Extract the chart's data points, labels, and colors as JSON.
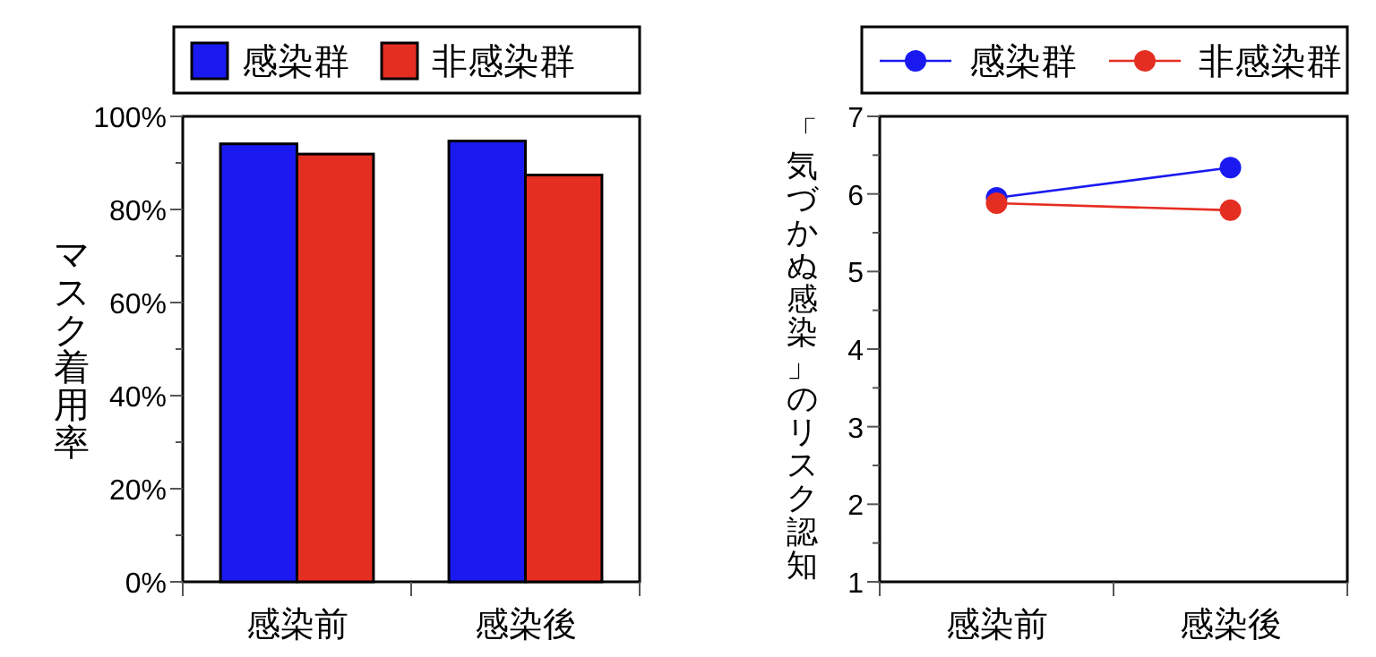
{
  "chart_data": [
    {
      "type": "bar",
      "categories": [
        "感染前",
        "感染後"
      ],
      "ylabel": "マスク着用率",
      "legend": "top",
      "ylim": [
        0,
        100
      ],
      "yticks": [
        {
          "value": 0,
          "label": "0%"
        },
        {
          "value": 10,
          "label": null
        },
        {
          "value": 20,
          "label": "20%"
        },
        {
          "value": 30,
          "label": null
        },
        {
          "value": 40,
          "label": "40%"
        },
        {
          "value": 50,
          "label": null
        },
        {
          "value": 60,
          "label": "60%"
        },
        {
          "value": 70,
          "label": null
        },
        {
          "value": 80,
          "label": "80%"
        },
        {
          "value": 90,
          "label": null
        },
        {
          "value": 100,
          "label": "100%"
        }
      ],
      "series": [
        {
          "name": "感染群",
          "color": "#1a1af0",
          "values": [
            94.1,
            94.7
          ]
        },
        {
          "name": "非感染群",
          "color": "#e52e22",
          "values": [
            91.9,
            87.4
          ]
        }
      ]
    },
    {
      "type": "line",
      "categories": [
        "感染前",
        "感染後"
      ],
      "ylabel": "「気づかぬ感染」のリスク認知",
      "legend": "top",
      "marker": "circle",
      "line_style": "solid",
      "ylim": [
        1,
        7
      ],
      "yticks": [
        1,
        {
          "value": 1.5,
          "label": null
        },
        2,
        {
          "value": 2.5,
          "label": null
        },
        3,
        {
          "value": 3.5,
          "label": null
        },
        4,
        {
          "value": 4.5,
          "label": null
        },
        5,
        {
          "value": 5.5,
          "label": null
        },
        6,
        {
          "value": 6.5,
          "label": null
        },
        7
      ],
      "series": [
        {
          "name": "感染群",
          "color": "#1a1af0",
          "values": [
            5.95,
            6.34
          ]
        },
        {
          "name": "非感染群",
          "color": "#e52e22",
          "values": [
            5.88,
            5.79
          ]
        }
      ]
    }
  ]
}
